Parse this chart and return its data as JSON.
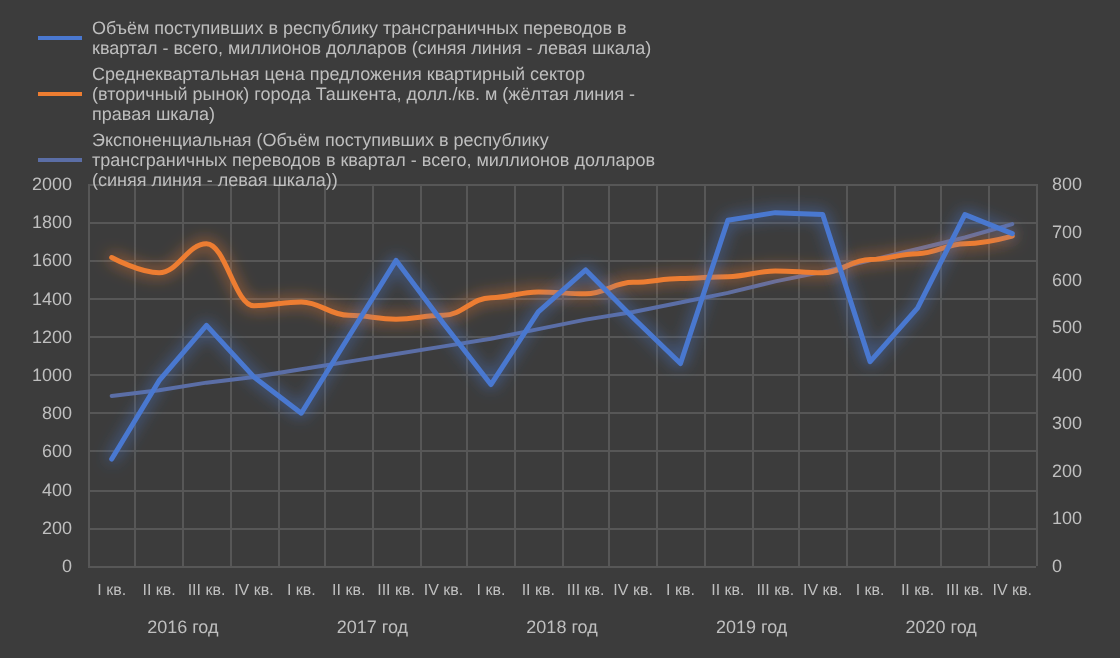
{
  "chart_data": {
    "type": "line",
    "categories": [
      "I кв.",
      "II кв.",
      "III кв.",
      "IV кв.",
      "I кв.",
      "II кв.",
      "III кв.",
      "IV кв.",
      "I кв.",
      "II кв.",
      "III кв.",
      "IV кв.",
      "I кв.",
      "II кв.",
      "III кв.",
      "IV кв.",
      "I кв.",
      "II кв.",
      "III кв.",
      "IV кв."
    ],
    "annotations": [
      "2016 год",
      "2017 год",
      "2018 год",
      "2019 год",
      "2020 год"
    ],
    "series": [
      {
        "name": "Объём поступивших в республику трансграничных переводов в квартал - всего, миллионов долларов (синяя линия - левая шкала)",
        "color": "#4a78d0",
        "values": [
          560,
          970,
          1260,
          990,
          800,
          1200,
          1600,
          1270,
          950,
          1330,
          1550,
          1300,
          1060,
          1810,
          1850,
          1840,
          1070,
          1350,
          1840,
          1740
        ]
      },
      {
        "name": "Среднеквартальная цена предложения квартирный сектор (вторичный рынок) города Ташкента, долл./кв. м (жёлтая линия - правая шкала)",
        "color": "#ed7d31",
        "axis": "y2",
        "values": [
          646,
          614,
          675,
          545,
          553,
          525,
          517,
          525,
          562,
          574,
          570,
          594,
          602,
          606,
          618,
          614,
          642,
          654,
          675,
          691
        ]
      },
      {
        "name": "Экспоненциальная (Объём поступивших в республику трансграничных переводов в квартал - всего, миллионов долларов (синяя линия - левая шкала))",
        "color": "#5b6ea6",
        "values": [
          890,
          920,
          960,
          990,
          1030,
          1070,
          1110,
          1150,
          1190,
          1240,
          1290,
          1330,
          1380,
          1430,
          1490,
          1540,
          1600,
          1660,
          1720,
          1790
        ]
      }
    ],
    "ylim": [
      0,
      2000
    ],
    "yticks": [
      0,
      200,
      400,
      600,
      800,
      1000,
      1200,
      1400,
      1600,
      1800,
      2000
    ],
    "y2lim": [
      0,
      800
    ],
    "y2ticks": [
      0,
      100,
      200,
      300,
      400,
      500,
      600,
      700,
      800
    ],
    "grid": true,
    "legend": "top",
    "marker": "none",
    "line_style": "solid"
  }
}
